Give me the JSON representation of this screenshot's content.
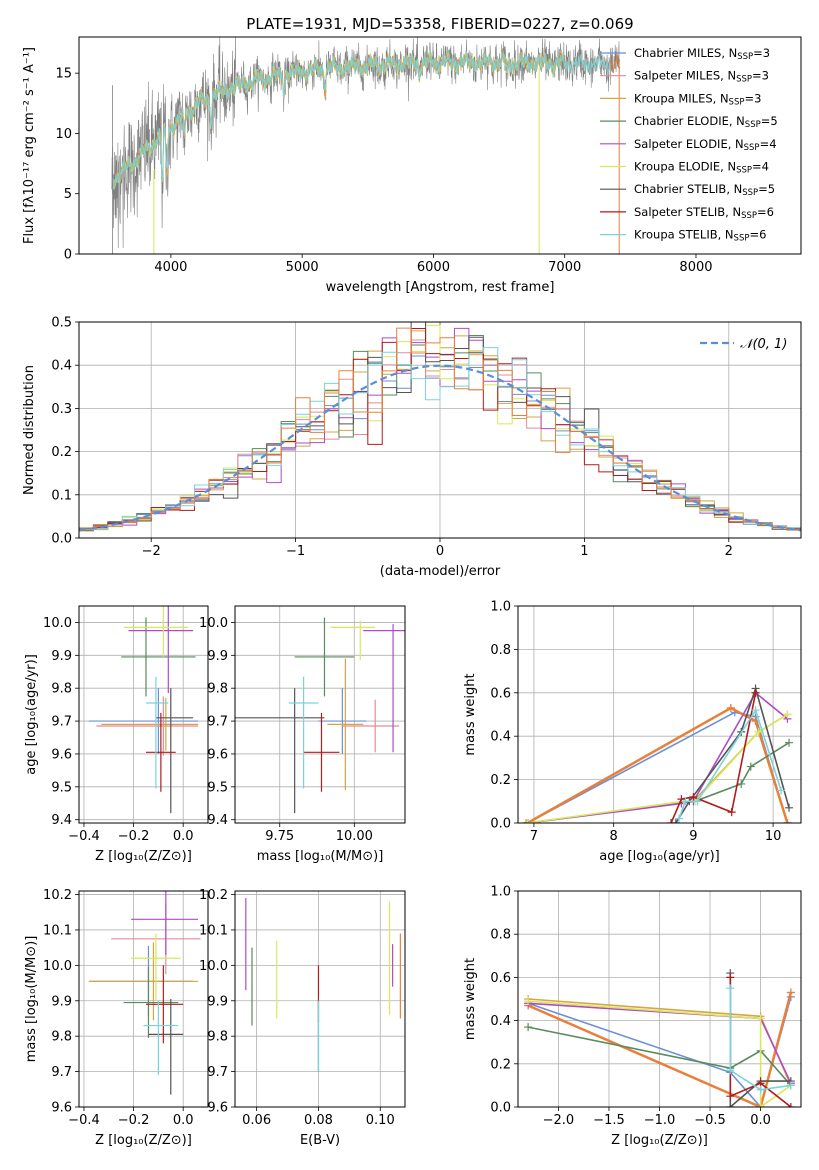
{
  "title": "PLATE=1931, MJD=53358, FIBERID=0227, z=0.069",
  "colors": {
    "Chabrier MILES": "#6b8fd6",
    "Salpeter MILES": "#e88a9a",
    "Kroupa MILES": "#d9a441",
    "Chabrier ELODIE": "#5a8a5e",
    "Salpeter ELODIE": "#b04ac8",
    "Kroupa ELODIE": "#d8e85a",
    "Chabrier STELIB": "#555555",
    "Salpeter STELIB": "#b01c1c",
    "Kroupa STELIB": "#78d4dc",
    "data": "#808080",
    "extra": "#e8803c",
    "gauss": "#5a8fd6"
  },
  "legend1": [
    {
      "label": "Chabrier MILES, N",
      "sub": "SSP",
      "tail": "=3"
    },
    {
      "label": "Salpeter MILES, N",
      "sub": "SSP",
      "tail": "=3"
    },
    {
      "label": "Kroupa MILES, N",
      "sub": "SSP",
      "tail": "=3"
    },
    {
      "label": "Chabrier ELODIE, N",
      "sub": "SSP",
      "tail": "=5"
    },
    {
      "label": "Salpeter ELODIE, N",
      "sub": "SSP",
      "tail": "=4"
    },
    {
      "label": "Kroupa ELODIE, N",
      "sub": "SSP",
      "tail": "=4"
    },
    {
      "label": "Chabrier STELIB, N",
      "sub": "SSP",
      "tail": "=5"
    },
    {
      "label": "Salpeter STELIB, N",
      "sub": "SSP",
      "tail": "=6"
    },
    {
      "label": "Kroupa STELIB, N",
      "sub": "SSP",
      "tail": "=6"
    }
  ],
  "legend2": {
    "label": "𝒩(0, 1)"
  },
  "chart_data": [
    {
      "id": "spectrum",
      "type": "line",
      "xlabel": "wavelength [Angstrom, rest frame]",
      "ylabel": "Flux [fλ10⁻¹⁷ erg cm⁻² s⁻¹ A⁻¹]",
      "xlim": [
        3300,
        8800
      ],
      "ylim": [
        0,
        18
      ],
      "xticks": [
        4000,
        5000,
        6000,
        7000,
        8000
      ],
      "yticks": [
        0,
        5,
        10,
        15
      ],
      "continuum": [
        [
          3550,
          6
        ],
        [
          3650,
          7
        ],
        [
          3800,
          8.5
        ],
        [
          3950,
          10
        ],
        [
          4050,
          11
        ],
        [
          4200,
          12.5
        ],
        [
          4400,
          13.5
        ],
        [
          4600,
          14.3
        ],
        [
          4900,
          15
        ],
        [
          5200,
          15.4
        ],
        [
          5600,
          15.7
        ],
        [
          6000,
          15.9
        ],
        [
          6500,
          15.9
        ],
        [
          7000,
          15.8
        ],
        [
          7400,
          15.7
        ]
      ],
      "model_end": 7420
    },
    {
      "id": "residuals",
      "type": "histogram",
      "xlabel": "(data-model)/error",
      "ylabel": "Normed distribution",
      "xlim": [
        -2.5,
        2.5
      ],
      "ylim": [
        0,
        0.5
      ],
      "xticks": [
        -2,
        -1,
        0,
        1,
        2
      ],
      "yticks": [
        0,
        0.1,
        0.2,
        0.3,
        0.4,
        0.5
      ],
      "bins": [
        -2.5,
        2.5,
        50
      ]
    },
    {
      "id": "age_vs_Z",
      "type": "errorbar",
      "xlabel": "Z [log₁₀(Z/Z⊙)]",
      "ylabel": "age  [log₁₀(age/yr)]",
      "xlim": [
        -0.42,
        0.1
      ],
      "ylim": [
        9.39,
        10.05
      ],
      "xticks": [
        -0.4,
        -0.2,
        0.0
      ],
      "yticks": [
        9.4,
        9.5,
        9.6,
        9.7,
        9.8,
        9.9,
        10.0
      ],
      "points": [
        {
          "s": "Chabrier MILES",
          "x": -0.1,
          "xerr": [
            0.28,
            0.16
          ],
          "y": 9.7,
          "yerr": [
            0.1,
            0.1
          ]
        },
        {
          "s": "Salpeter MILES",
          "x": -0.08,
          "xerr": [
            0.27,
            0.14
          ],
          "y": 9.685,
          "yerr": [
            0.09,
            0.09
          ]
        },
        {
          "s": "Kroupa MILES",
          "x": -0.07,
          "xerr": [
            0.26,
            0.13
          ],
          "y": 9.69,
          "yerr": [
            0.08,
            0.08
          ]
        },
        {
          "s": "Chabrier ELODIE",
          "x": -0.15,
          "xerr": [
            0.1,
            0.2
          ],
          "y": 9.895,
          "yerr": [
            0.12,
            0.12
          ]
        },
        {
          "s": "Salpeter ELODIE",
          "x": -0.06,
          "xerr": [
            0.16,
            0.1
          ],
          "y": 9.975,
          "yerr": [
            0.19,
            0.19
          ]
        },
        {
          "s": "Kroupa ELODIE",
          "x": -0.08,
          "xerr": [
            0.16,
            0.1
          ],
          "y": 9.985,
          "yerr": [
            0.09,
            0.09
          ]
        },
        {
          "s": "Chabrier STELIB",
          "x": -0.05,
          "xerr": [
            0.06,
            0.09
          ],
          "y": 9.71,
          "yerr": [
            0.29,
            0.09
          ]
        },
        {
          "s": "Salpeter STELIB",
          "x": -0.09,
          "xerr": [
            0.06,
            0.06
          ],
          "y": 9.605,
          "yerr": [
            0.12,
            0.12
          ]
        },
        {
          "s": "Kroupa STELIB",
          "x": -0.11,
          "xerr": [
            0.04,
            0.05
          ],
          "y": 9.755,
          "yerr": [
            0.26,
            0.08
          ]
        }
      ]
    },
    {
      "id": "age_vs_mass",
      "type": "errorbar",
      "xlabel": "mass [log₁₀(M/M⊙)]",
      "ylabel": "",
      "xlim": [
        9.6,
        10.17
      ],
      "ylim": [
        9.39,
        10.05
      ],
      "xticks": [
        9.75,
        10.0
      ],
      "yticks": [
        9.4,
        9.5,
        9.6,
        9.7,
        9.8,
        9.9,
        10.0
      ],
      "points": [
        {
          "s": "Chabrier MILES",
          "x": 9.96,
          "xerr": [
            0.08,
            0.08
          ],
          "y": 9.7,
          "yerr": [
            0.1,
            0.1
          ]
        },
        {
          "s": "Salpeter MILES",
          "x": 10.07,
          "xerr": [
            0.11,
            0.08
          ],
          "y": 9.685,
          "yerr": [
            0.08,
            0.08
          ]
        },
        {
          "s": "Kroupa MILES",
          "x": 9.97,
          "xerr": [
            0.06,
            0.06
          ],
          "y": 9.69,
          "yerr": [
            0.2,
            0.2
          ]
        },
        {
          "s": "Chabrier ELODIE",
          "x": 9.9,
          "xerr": [
            0.1,
            0.1
          ],
          "y": 9.895,
          "yerr": [
            0.12,
            0.12
          ]
        },
        {
          "s": "Salpeter ELODIE",
          "x": 10.13,
          "xerr": [
            0.1,
            0.1
          ],
          "y": 9.975,
          "yerr": [
            0.37,
            0.02
          ]
        },
        {
          "s": "Kroupa ELODIE",
          "x": 10.02,
          "xerr": [
            0.1,
            0.05
          ],
          "y": 9.985,
          "yerr": [
            0.1,
            0.02
          ]
        },
        {
          "s": "Chabrier STELIB",
          "x": 9.8,
          "xerr": [
            0.2,
            0.1
          ],
          "y": 9.71,
          "yerr": [
            0.29,
            0.09
          ]
        },
        {
          "s": "Salpeter STELIB",
          "x": 9.89,
          "xerr": [
            0.06,
            0.06
          ],
          "y": 9.605,
          "yerr": [
            0.12,
            0.12
          ]
        },
        {
          "s": "Kroupa STELIB",
          "x": 9.83,
          "xerr": [
            0.05,
            0.05
          ],
          "y": 9.755,
          "yerr": [
            0.26,
            0.08
          ]
        }
      ]
    },
    {
      "id": "weight_vs_age",
      "type": "line",
      "xlabel": "age  [log₁₀(age/yr)]",
      "ylabel": "mass weight",
      "xlim": [
        6.8,
        10.35
      ],
      "ylim": [
        0,
        1.0
      ],
      "xticks": [
        7,
        8,
        9,
        10
      ],
      "yticks": [
        0,
        0.2,
        0.4,
        0.6,
        0.8,
        1.0
      ],
      "series": [
        {
          "s": "Chabrier MILES",
          "x": [
            6.92,
            9.52,
            9.78,
            10.18
          ],
          "y": [
            0.0,
            0.51,
            0.49,
            0.0
          ]
        },
        {
          "s": "Salpeter MILES",
          "x": [
            6.92,
            9.47,
            9.78,
            10.18
          ],
          "y": [
            0.0,
            0.53,
            0.47,
            0.0
          ]
        },
        {
          "s": "extra",
          "x": [
            6.92,
            9.47,
            9.78,
            10.18
          ],
          "y": [
            0.0,
            0.53,
            0.47,
            0.0
          ]
        },
        {
          "s": "Kroupa MILES",
          "x": [
            6.9,
            9.0,
            9.82,
            10.18
          ],
          "y": [
            0.0,
            0.1,
            0.42,
            0.5
          ]
        },
        {
          "s": "Chabrier ELODIE",
          "x": [
            6.92,
            9.02,
            9.6,
            9.72,
            10.2
          ],
          "y": [
            0.0,
            0.1,
            0.18,
            0.26,
            0.37
          ]
        },
        {
          "s": "Salpeter ELODIE",
          "x": [
            6.92,
            8.85,
            9.0,
            9.78,
            10.18
          ],
          "y": [
            0.0,
            0.09,
            0.1,
            0.6,
            0.48
          ]
        },
        {
          "s": "Kroupa ELODIE",
          "x": [
            6.92,
            8.88,
            9.02,
            9.82,
            10.18
          ],
          "y": [
            0.0,
            0.1,
            0.1,
            0.42,
            0.5
          ]
        },
        {
          "s": "Chabrier STELIB",
          "x": [
            8.78,
            8.95,
            9.6,
            9.78,
            10.2
          ],
          "y": [
            0.0,
            0.1,
            0.42,
            0.62,
            0.07
          ]
        },
        {
          "s": "Salpeter STELIB",
          "x": [
            8.72,
            8.85,
            9.0,
            9.48,
            9.78
          ],
          "y": [
            0.0,
            0.11,
            0.12,
            0.05,
            0.6
          ]
        },
        {
          "s": "Kroupa STELIB",
          "x": [
            8.82,
            8.9,
            9.05,
            9.78,
            10.1
          ],
          "y": [
            0.02,
            0.1,
            0.1,
            0.52,
            0.15
          ]
        }
      ]
    },
    {
      "id": "mass_vs_Z",
      "type": "errorbar",
      "xlabel": "Z [log₁₀(Z/Z⊙)]",
      "ylabel": "mass [log₁₀(M/M⊙)]",
      "xlim": [
        -0.42,
        0.1
      ],
      "ylim": [
        9.6,
        10.21
      ],
      "xticks": [
        -0.4,
        -0.2,
        0.0
      ],
      "yticks": [
        9.6,
        9.7,
        9.8,
        9.9,
        10.0,
        10.1,
        10.2
      ],
      "points": [
        {
          "s": "Chabrier MILES",
          "x": -0.14,
          "xerr": [
            0.24,
            0.18
          ],
          "y": 9.955,
          "yerr": [
            0.1,
            0.1
          ]
        },
        {
          "s": "Salpeter MILES",
          "x": -0.07,
          "xerr": [
            0.22,
            0.14
          ],
          "y": 10.075,
          "yerr": [
            0.1,
            0.1
          ]
        },
        {
          "s": "Kroupa MILES",
          "x": -0.12,
          "xerr": [
            0.26,
            0.18
          ],
          "y": 9.955,
          "yerr": [
            0.11,
            0.11
          ]
        },
        {
          "s": "Chabrier ELODIE",
          "x": -0.14,
          "xerr": [
            0.1,
            0.12
          ],
          "y": 9.895,
          "yerr": [
            0.1,
            0.1
          ]
        },
        {
          "s": "Salpeter ELODIE",
          "x": -0.07,
          "xerr": [
            0.14,
            0.13
          ],
          "y": 10.13,
          "yerr": [
            0.1,
            0.1
          ]
        },
        {
          "s": "Kroupa ELODIE",
          "x": -0.11,
          "xerr": [
            0.1,
            0.1
          ],
          "y": 10.02,
          "yerr": [
            0.12,
            0.07
          ]
        },
        {
          "s": "Chabrier STELIB",
          "x": -0.05,
          "xerr": [
            0.09,
            0.05
          ],
          "y": 9.805,
          "yerr": [
            0.17,
            0.1
          ]
        },
        {
          "s": "Salpeter STELIB",
          "x": -0.08,
          "xerr": [
            0.07,
            0.08
          ],
          "y": 9.89,
          "yerr": [
            0.11,
            0.11
          ]
        },
        {
          "s": "Kroupa STELIB",
          "x": -0.1,
          "xerr": [
            0.06,
            0.08
          ],
          "y": 9.83,
          "yerr": [
            0.14,
            0.07
          ]
        }
      ]
    },
    {
      "id": "mass_vs_ebv",
      "type": "errorbar",
      "xlabel": "E(B-V)",
      "ylabel": "",
      "xlim": [
        0.053,
        0.108
      ],
      "ylim": [
        9.6,
        10.21
      ],
      "xticks": [
        0.06,
        0.08,
        0.1
      ],
      "yticks": [
        9.6,
        9.7,
        9.8,
        9.9,
        10.0,
        10.1,
        10.2
      ],
      "points": [
        {
          "s": "Salpeter ELODIE",
          "x": 0.0565,
          "y": 10.06,
          "yerr": [
            0.13,
            0.13
          ]
        },
        {
          "s": "Chabrier ELODIE",
          "x": 0.0585,
          "y": 9.94,
          "yerr": [
            0.11,
            0.11
          ]
        },
        {
          "s": "Kroupa ELODIE",
          "x": 0.0665,
          "y": 9.96,
          "yerr": [
            0.11,
            0.11
          ]
        },
        {
          "s": "Salpeter STELIB",
          "x": 0.08,
          "y": 9.92,
          "yerr": [
            0.08,
            0.08
          ]
        },
        {
          "s": "Chabrier STELIB",
          "x": 0.08,
          "y": 9.83,
          "yerr": [
            0.13,
            0.07
          ]
        },
        {
          "s": "Kroupa STELIB",
          "x": 0.08,
          "y": 9.8,
          "yerr": [
            0.1,
            0.1
          ]
        },
        {
          "s": "Kroupa ELODIE",
          "x": 0.103,
          "y": 10.02,
          "yerr": [
            0.16,
            0.16
          ]
        },
        {
          "s": "Salpeter ELODIE",
          "x": 0.104,
          "y": 10.0,
          "yerr": [
            0.06,
            0.06
          ]
        },
        {
          "s": "extra",
          "x": 0.1065,
          "y": 9.97,
          "yerr": [
            0.12,
            0.12
          ]
        }
      ]
    },
    {
      "id": "weight_vs_Z",
      "type": "line",
      "xlabel": "Z [log₁₀(Z/Z⊙)]",
      "ylabel": "mass weight",
      "xlim": [
        -2.4,
        0.4
      ],
      "ylim": [
        0,
        1.0
      ],
      "xticks": [
        -2.0,
        -1.5,
        -1.0,
        -0.5,
        0.0
      ],
      "yticks": [
        0,
        0.2,
        0.4,
        0.6,
        0.8,
        1.0
      ],
      "series": [
        {
          "s": "Chabrier MILES",
          "x": [
            -2.3,
            -0.3,
            0.0,
            0.3
          ],
          "y": [
            0.48,
            0.16,
            0.0,
            0.51
          ]
        },
        {
          "s": "Salpeter MILES",
          "x": [
            -2.3,
            0.0,
            0.3
          ],
          "y": [
            0.47,
            0.0,
            0.53
          ]
        },
        {
          "s": "extra",
          "x": [
            -2.3,
            0.0,
            0.3
          ],
          "y": [
            0.47,
            0.0,
            0.53
          ]
        },
        {
          "s": "Kroupa MILES",
          "x": [
            -2.3,
            0.0,
            0.3
          ],
          "y": [
            0.5,
            0.42,
            0.1
          ]
        },
        {
          "s": "Chabrier ELODIE",
          "x": [
            -2.3,
            -0.3,
            0.0,
            0.3
          ],
          "y": [
            0.37,
            0.18,
            0.26,
            0.1
          ]
        },
        {
          "s": "Salpeter ELODIE",
          "x": [
            -2.3,
            0.0,
            0.3
          ],
          "y": [
            0.48,
            0.41,
            0.11
          ]
        },
        {
          "s": "Kroupa ELODIE",
          "x": [
            -2.3,
            0.0,
            0.0,
            0.3
          ],
          "y": [
            0.49,
            0.41,
            0.0,
            0.1
          ]
        },
        {
          "s": "Chabrier STELIB",
          "x": [
            -0.3,
            -0.3,
            0.0,
            0.3
          ],
          "y": [
            0.62,
            0.0,
            0.12,
            0.12
          ]
        },
        {
          "s": "Salpeter STELIB",
          "x": [
            -0.3,
            -0.3,
            0.0,
            0.3
          ],
          "y": [
            0.6,
            0.05,
            0.11,
            0.0
          ]
        },
        {
          "s": "Kroupa STELIB",
          "x": [
            -0.3,
            -0.3,
            0.0,
            0.3
          ],
          "y": [
            0.55,
            0.17,
            0.08,
            0.1
          ]
        }
      ]
    }
  ]
}
